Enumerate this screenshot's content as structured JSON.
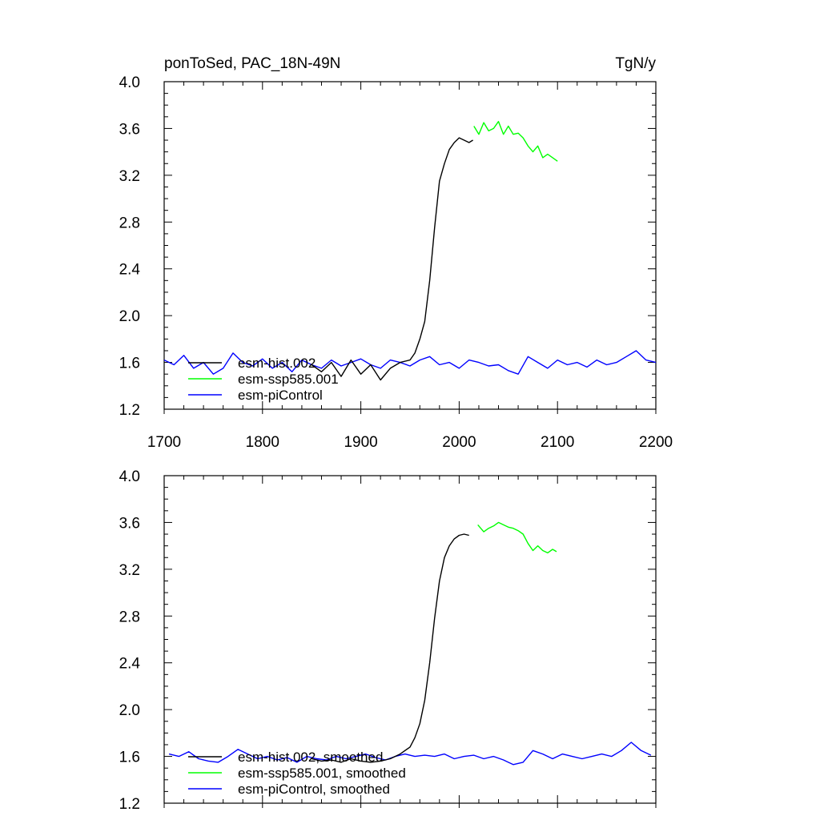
{
  "chart_data": [
    {
      "type": "line",
      "title_left": "ponToSed, PAC_18N-49N",
      "title_right": "TgN/y",
      "xlim": [
        1700,
        2200
      ],
      "ylim": [
        1.2,
        4.0
      ],
      "x_ticks": [
        "1700",
        "1800",
        "1900",
        "2000",
        "2100",
        "2200"
      ],
      "y_ticks": [
        "1.2",
        "1.6",
        "2.0",
        "2.4",
        "2.8",
        "3.2",
        "3.6",
        "4.0"
      ],
      "grid": false,
      "legend_position": "bottom-left",
      "series": [
        {
          "name": "esm-hist.002",
          "color": "#000000",
          "x": [
            1850,
            1860,
            1870,
            1880,
            1890,
            1900,
            1910,
            1920,
            1930,
            1940,
            1950,
            1955,
            1960,
            1965,
            1970,
            1975,
            1980,
            1985,
            1990,
            1995,
            2000,
            2005,
            2010,
            2014
          ],
          "y": [
            1.58,
            1.52,
            1.6,
            1.48,
            1.62,
            1.5,
            1.58,
            1.45,
            1.55,
            1.6,
            1.62,
            1.68,
            1.8,
            1.95,
            2.3,
            2.75,
            3.15,
            3.3,
            3.42,
            3.48,
            3.52,
            3.5,
            3.48,
            3.5
          ]
        },
        {
          "name": "esm-ssp585.001",
          "color": "#00ff00",
          "x": [
            2015,
            2020,
            2025,
            2030,
            2035,
            2040,
            2045,
            2050,
            2055,
            2060,
            2065,
            2070,
            2075,
            2080,
            2085,
            2090,
            2095,
            2100
          ],
          "y": [
            3.62,
            3.55,
            3.65,
            3.58,
            3.6,
            3.66,
            3.55,
            3.62,
            3.55,
            3.56,
            3.52,
            3.45,
            3.4,
            3.45,
            3.35,
            3.38,
            3.35,
            3.32
          ]
        },
        {
          "name": "esm-piControl",
          "color": "#0000ff",
          "x": [
            1700,
            1710,
            1720,
            1730,
            1740,
            1750,
            1760,
            1770,
            1780,
            1790,
            1800,
            1810,
            1820,
            1830,
            1840,
            1850,
            1860,
            1870,
            1880,
            1890,
            1900,
            1910,
            1920,
            1930,
            1940,
            1950,
            1960,
            1970,
            1980,
            1990,
            2000,
            2010,
            2020,
            2030,
            2040,
            2050,
            2060,
            2070,
            2080,
            2090,
            2100,
            2110,
            2120,
            2130,
            2140,
            2150,
            2160,
            2170,
            2180,
            2190,
            2200
          ],
          "y": [
            1.62,
            1.58,
            1.66,
            1.55,
            1.6,
            1.5,
            1.55,
            1.68,
            1.6,
            1.57,
            1.63,
            1.55,
            1.6,
            1.52,
            1.62,
            1.58,
            1.55,
            1.62,
            1.57,
            1.6,
            1.63,
            1.58,
            1.55,
            1.62,
            1.6,
            1.57,
            1.62,
            1.65,
            1.58,
            1.6,
            1.55,
            1.62,
            1.6,
            1.57,
            1.58,
            1.53,
            1.5,
            1.65,
            1.6,
            1.55,
            1.62,
            1.58,
            1.6,
            1.56,
            1.62,
            1.58,
            1.6,
            1.65,
            1.7,
            1.62,
            1.6
          ]
        }
      ]
    },
    {
      "type": "line",
      "xlim": [
        1700,
        2200
      ],
      "ylim": [
        1.2,
        4.0
      ],
      "y_ticks": [
        "1.2",
        "1.6",
        "2.0",
        "2.4",
        "2.8",
        "3.2",
        "3.6",
        "4.0"
      ],
      "grid": false,
      "legend_position": "bottom-left",
      "series": [
        {
          "name": "esm-hist.002, smoothed",
          "color": "#000000",
          "x": [
            1850,
            1860,
            1870,
            1880,
            1890,
            1900,
            1910,
            1920,
            1930,
            1940,
            1950,
            1955,
            1960,
            1965,
            1970,
            1975,
            1980,
            1985,
            1990,
            1995,
            2000,
            2005,
            2010
          ],
          "y": [
            1.58,
            1.56,
            1.57,
            1.55,
            1.58,
            1.56,
            1.55,
            1.56,
            1.58,
            1.62,
            1.68,
            1.76,
            1.88,
            2.08,
            2.4,
            2.78,
            3.1,
            3.3,
            3.4,
            3.46,
            3.49,
            3.5,
            3.49
          ]
        },
        {
          "name": "esm-ssp585.001, smoothed",
          "color": "#00ff00",
          "x": [
            2019,
            2025,
            2030,
            2035,
            2040,
            2045,
            2050,
            2055,
            2060,
            2065,
            2070,
            2075,
            2080,
            2085,
            2090,
            2095,
            2099
          ],
          "y": [
            3.58,
            3.52,
            3.55,
            3.57,
            3.6,
            3.58,
            3.56,
            3.55,
            3.53,
            3.5,
            3.42,
            3.36,
            3.4,
            3.36,
            3.34,
            3.37,
            3.35
          ]
        },
        {
          "name": "esm-piControl, smoothed",
          "color": "#0000ff",
          "x": [
            1705,
            1715,
            1725,
            1735,
            1745,
            1755,
            1765,
            1775,
            1785,
            1795,
            1805,
            1815,
            1825,
            1835,
            1845,
            1855,
            1865,
            1875,
            1885,
            1895,
            1905,
            1915,
            1925,
            1935,
            1945,
            1955,
            1965,
            1975,
            1985,
            1995,
            2005,
            2015,
            2025,
            2035,
            2045,
            2055,
            2065,
            2075,
            2085,
            2095,
            2105,
            2115,
            2125,
            2135,
            2145,
            2155,
            2165,
            2175,
            2185,
            2195
          ],
          "y": [
            1.62,
            1.6,
            1.64,
            1.58,
            1.56,
            1.55,
            1.6,
            1.66,
            1.62,
            1.58,
            1.6,
            1.57,
            1.59,
            1.55,
            1.6,
            1.58,
            1.57,
            1.6,
            1.58,
            1.6,
            1.62,
            1.59,
            1.57,
            1.6,
            1.62,
            1.6,
            1.61,
            1.6,
            1.62,
            1.58,
            1.6,
            1.61,
            1.58,
            1.6,
            1.57,
            1.53,
            1.55,
            1.65,
            1.62,
            1.58,
            1.62,
            1.6,
            1.58,
            1.6,
            1.62,
            1.6,
            1.65,
            1.72,
            1.65,
            1.61
          ]
        }
      ]
    }
  ]
}
